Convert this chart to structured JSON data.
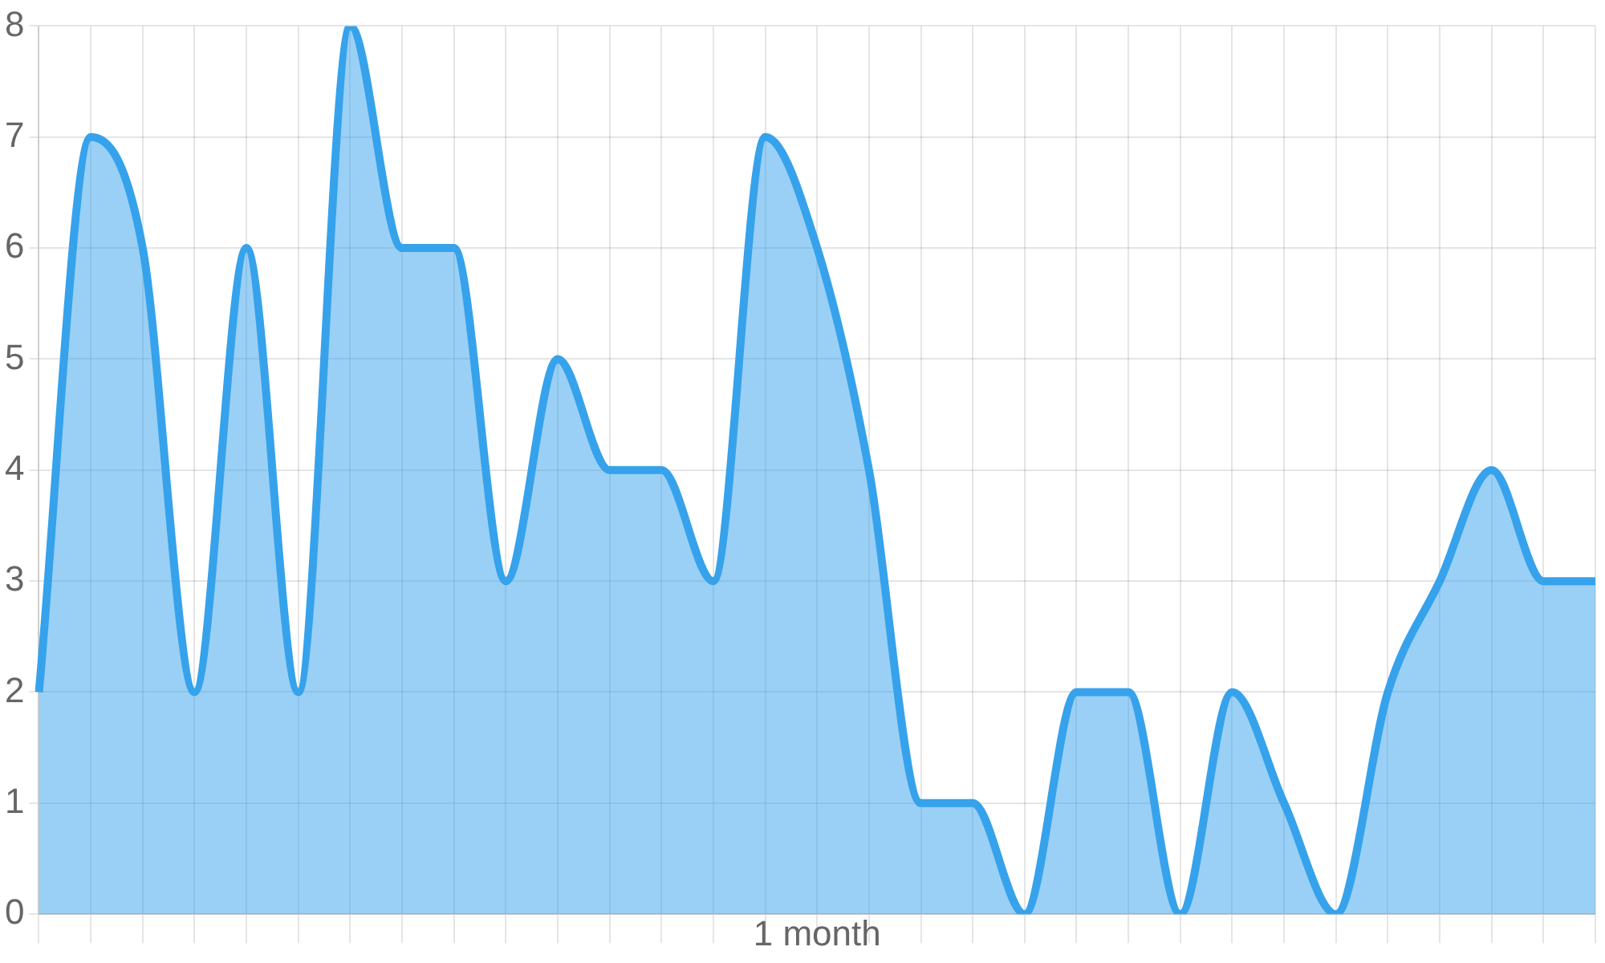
{
  "chart_data": {
    "type": "area",
    "xlabel": "1 month",
    "categories": [
      null,
      null,
      null,
      null,
      null,
      null,
      null,
      null,
      null,
      null,
      null,
      null,
      null,
      null,
      null,
      null,
      null,
      null,
      null,
      null,
      null,
      null,
      null,
      null,
      null,
      null,
      null,
      null,
      null,
      null,
      null
    ],
    "series": [
      {
        "color": "#36a2eb",
        "values": [
          2,
          7,
          6,
          2,
          6,
          2,
          8,
          6,
          6,
          3,
          5,
          4,
          4,
          3,
          7,
          6,
          4,
          1,
          1,
          0,
          2,
          2,
          0,
          2,
          1,
          0,
          2,
          3,
          4,
          3,
          3
        ]
      }
    ],
    "ylim": [
      0,
      8
    ],
    "yticks": [
      0,
      1,
      2,
      3,
      4,
      5,
      6,
      7,
      8
    ],
    "grid": true,
    "legend": false,
    "tick_labels": "y",
    "marker": "none",
    "line_style": "solid"
  }
}
